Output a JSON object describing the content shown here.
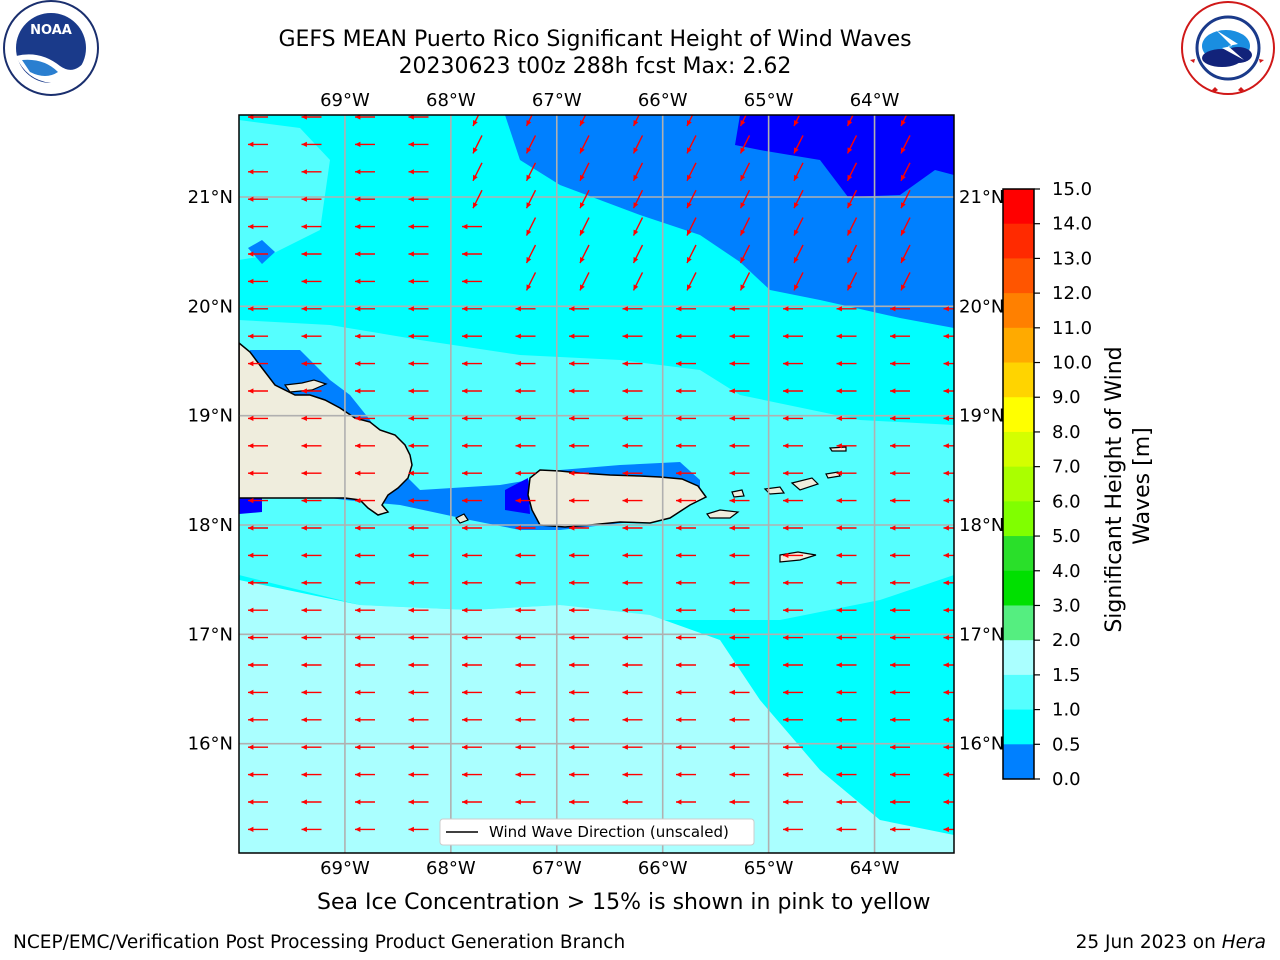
{
  "title": {
    "line1": "GEFS MEAN Puerto Rico Significant Height of Wind Waves",
    "line2": "20230623 t00z 288h fcst   Max: 2.62"
  },
  "logos": {
    "left": {
      "name": "NOAA",
      "text": "NOAA",
      "ring_text": "NATIONAL OCEANIC AND ATMOSPHERIC ADMINISTRATION · U.S. DEPARTMENT OF COMMERCE"
    },
    "right": {
      "name": "National Weather Service",
      "ring_text": "NATIONAL WEATHER SERVICE"
    }
  },
  "map": {
    "lon_labels": [
      "69°W",
      "68°W",
      "67°W",
      "66°W",
      "65°W",
      "64°W"
    ],
    "lat_labels": [
      "21°N",
      "20°N",
      "19°N",
      "18°N",
      "17°N",
      "16°N"
    ],
    "lon_values": [
      -69,
      -68,
      -67,
      -66,
      -65,
      -64
    ],
    "lat_values": [
      21,
      20,
      19,
      18,
      17,
      16
    ],
    "extent": {
      "lon_min": -70.0,
      "lon_max": -63.25,
      "lat_min": 15.0,
      "lat_max": 21.75
    },
    "legend_label": "Wind Wave Direction (unscaled)",
    "arrow_color": "#ff0000",
    "land_color": "#efeddd",
    "grid_color": "#b0b0b0"
  },
  "colorbar": {
    "title": "Significant Height of Wind Waves [m]",
    "tick_labels": [
      "15.0",
      "14.0",
      "13.0",
      "12.0",
      "11.0",
      "10.0",
      "9.0",
      "8.0",
      "7.0",
      "6.0",
      "5.0",
      "4.0",
      "3.0",
      "2.0",
      "1.5",
      "1.0",
      "0.5",
      "0.0"
    ],
    "colors_top_to_bottom": [
      "#ff0000",
      "#ff2a00",
      "#ff5500",
      "#ff8000",
      "#ffaa00",
      "#ffd400",
      "#ffff00",
      "#d4ff00",
      "#aaff00",
      "#80ff00",
      "#2adf2a",
      "#00e000",
      "#55ee80",
      "#aaffff",
      "#55ffff",
      "#00ffff",
      "#0080ff",
      "#0000ff"
    ]
  },
  "captions": {
    "ice_note": "Sea Ice Concentration > 15% is shown in pink to yellow",
    "footer_left": "NCEP/EMC/Verification Post Processing Product Generation Branch",
    "footer_right_prefix": "25 Jun 2023 on ",
    "footer_right_host": "Hera"
  }
}
